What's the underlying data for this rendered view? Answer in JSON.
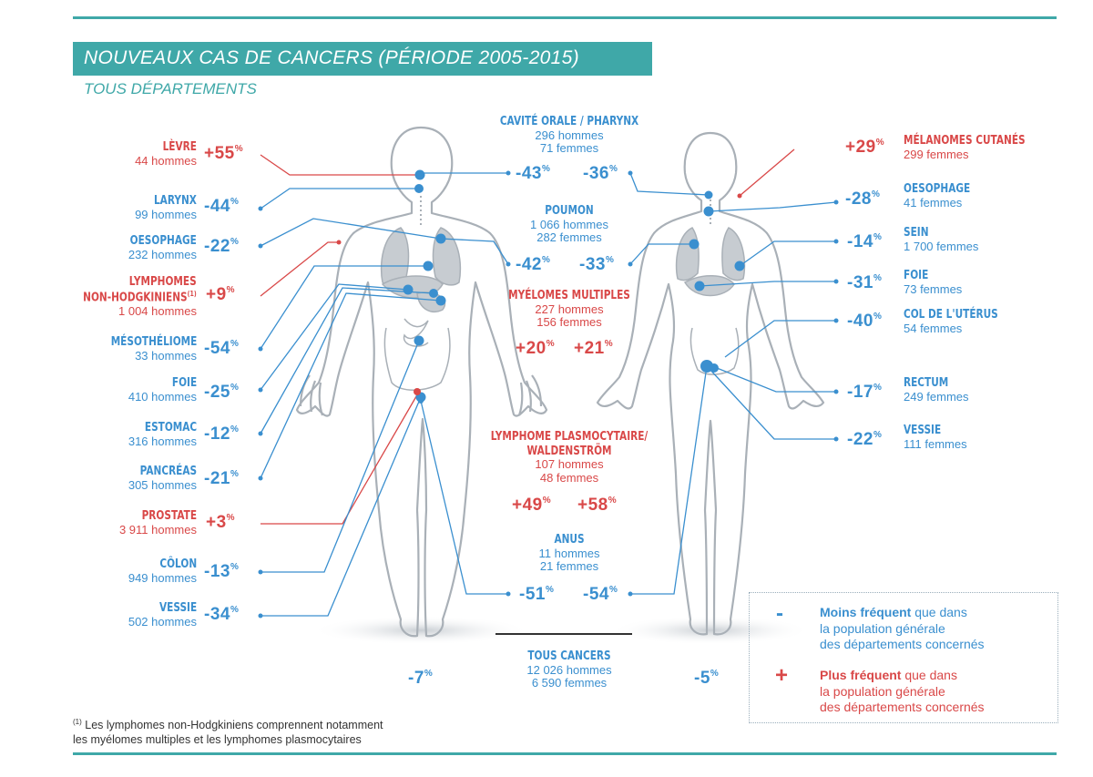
{
  "title": "NOUVEAUX CAS DE CANCERS (PÉRIODE 2005-2015)",
  "subtitle": "TOUS DÉPARTEMENTS",
  "colors": {
    "decrease": "#3a8fcf",
    "increase": "#d94848",
    "accent": "#3fa8a8"
  },
  "men_sites": [
    {
      "name": "Lèvre",
      "count": "44 hommes",
      "pct": "+55",
      "trend": "increase"
    },
    {
      "name": "Larynx",
      "count": "99 hommes",
      "pct": "-44",
      "trend": "decrease"
    },
    {
      "name": "Oesophage",
      "count": "232 hommes",
      "pct": "-22",
      "trend": "decrease"
    },
    {
      "name": "Lymphomes",
      "name2": "Non-Hodgkiniens",
      "note": "(1)",
      "count": "1 004 hommes",
      "pct": "+9",
      "trend": "increase"
    },
    {
      "name": "Mésothéliome",
      "count": "33 hommes",
      "pct": "-54",
      "trend": "decrease"
    },
    {
      "name": "Foie",
      "count": "410 hommes",
      "pct": "-25",
      "trend": "decrease"
    },
    {
      "name": "Estomac",
      "count": "316 hommes",
      "pct": "-12",
      "trend": "decrease"
    },
    {
      "name": "Pancréas",
      "count": "305 hommes",
      "pct": "-21",
      "trend": "decrease"
    },
    {
      "name": "Prostate",
      "count": "3 911 hommes",
      "pct": "+3",
      "trend": "increase"
    },
    {
      "name": "Côlon",
      "count": "949 hommes",
      "pct": "-13",
      "trend": "decrease"
    },
    {
      "name": "Vessie",
      "count": "502 hommes",
      "pct": "-34",
      "trend": "decrease"
    }
  ],
  "women_sites": [
    {
      "name": "Mélanomes cutanés",
      "count": "299 femmes",
      "pct": "+29",
      "trend": "increase"
    },
    {
      "name": "Oesophage",
      "count": "41 femmes",
      "pct": "-28",
      "trend": "decrease"
    },
    {
      "name": "Sein",
      "count": "1 700 femmes",
      "pct": "-14",
      "trend": "decrease"
    },
    {
      "name": "Foie",
      "count": "73 femmes",
      "pct": "-31",
      "trend": "decrease"
    },
    {
      "name": "Col de l'utérus",
      "count": "54 femmes",
      "pct": "-40",
      "trend": "decrease"
    },
    {
      "name": "Rectum",
      "count": "249 femmes",
      "pct": "-17",
      "trend": "decrease"
    },
    {
      "name": "Vessie",
      "count": "111 femmes",
      "pct": "-22",
      "trend": "decrease"
    }
  ],
  "shared_sites": [
    {
      "name": "Cavité orale / pharynx",
      "men": "296 hommes",
      "women": "71 femmes",
      "pct_men": "-43",
      "pct_women": "-36",
      "trend": "decrease"
    },
    {
      "name": "Poumon",
      "men": "1 066 hommes",
      "women": "282 femmes",
      "pct_men": "-42",
      "pct_women": "-33",
      "trend": "decrease"
    },
    {
      "name": "Myélomes multiples",
      "men": "227 hommes",
      "women": "156 femmes",
      "pct_men": "+20",
      "pct_women": "+21",
      "trend": "increase"
    },
    {
      "name": "Lymphome plasmocytaire/",
      "name2": "Waldenström",
      "men": "107 hommes",
      "women": "48 femmes",
      "pct_men": "+49",
      "pct_women": "+58",
      "trend": "increase"
    },
    {
      "name": "Anus",
      "men": "11 hommes",
      "women": "21 femmes",
      "pct_men": "-51",
      "pct_women": "-54",
      "trend": "decrease"
    }
  ],
  "all_cancers": {
    "name": "Tous cancers",
    "men": "12 026 hommes",
    "women": "6 590 femmes",
    "pct_men": "-7",
    "pct_women": "-5"
  },
  "pct_unit": "%",
  "legend": {
    "minus_sign": "-",
    "minus_bold": "Moins fréquent",
    "minus_text1": " que dans",
    "minus_text2": "la population générale",
    "minus_text3": "des départements concernés",
    "plus_sign": "+",
    "plus_bold": "Plus fréquent",
    "plus_text1": " que dans",
    "plus_text2": "la population générale",
    "plus_text3": "des départements concernés"
  },
  "footnote": {
    "marker": "(1)",
    "line1": " Les lymphomes non-Hodgkiniens comprennent notamment",
    "line2": "les myélomes multiples et les lymphomes plasmocytaires"
  }
}
